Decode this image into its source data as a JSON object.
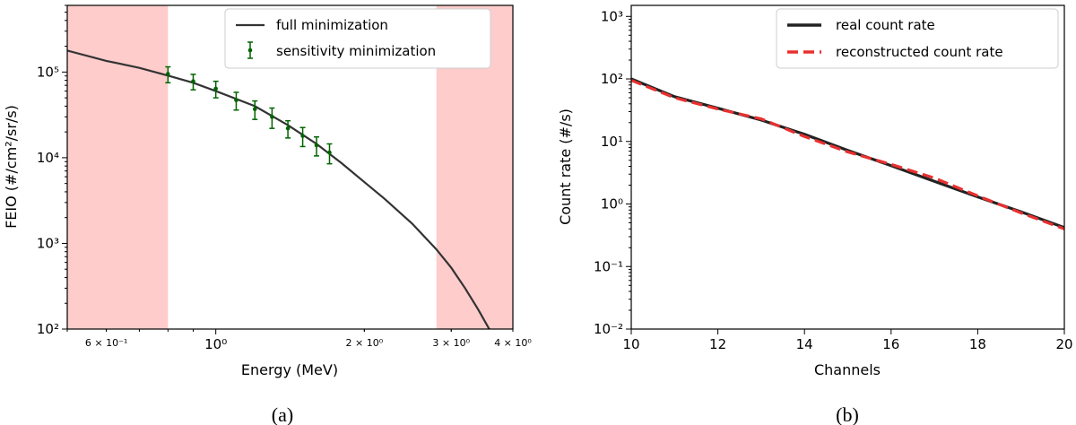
{
  "chart_data": [
    {
      "type": "line",
      "caption": "(a)",
      "xlabel": "Energy (MeV)",
      "ylabel": "FEIO (#/cm²/sr/s)",
      "xscale": "log",
      "yscale": "log",
      "xlim": [
        0.5,
        4.0
      ],
      "ylim": [
        100,
        600000
      ],
      "x_ticks": [
        {
          "value": 0.6,
          "label": "6 × 10⁻¹",
          "major": false
        },
        {
          "value": 1.0,
          "label": "10⁰",
          "major": true
        },
        {
          "value": 2.0,
          "label": "2 × 10⁰",
          "major": false
        },
        {
          "value": 3.0,
          "label": "3 × 10⁰",
          "major": false
        },
        {
          "value": 4.0,
          "label": "4 × 10⁰",
          "major": false
        }
      ],
      "y_ticks": [
        {
          "value": 100,
          "label": "10²"
        },
        {
          "value": 1000,
          "label": "10³"
        },
        {
          "value": 10000,
          "label": "10⁴"
        },
        {
          "value": 100000,
          "label": "10⁵"
        }
      ],
      "shaded_regions": [
        {
          "x0": 0.5,
          "x1": 0.8,
          "color": "#ffcccc"
        },
        {
          "x0": 2.8,
          "x1": 4.0,
          "color": "#ffcccc"
        }
      ],
      "legend_position": "top-right",
      "series": [
        {
          "name": "full minimization",
          "kind": "line",
          "color": "#333333",
          "points": [
            [
              0.5,
              178000
            ],
            [
              0.6,
              135000
            ],
            [
              0.7,
              112000
            ],
            [
              0.8,
              91000
            ],
            [
              0.9,
              75000
            ],
            [
              1.0,
              60000
            ],
            [
              1.2,
              40000
            ],
            [
              1.4,
              24000
            ],
            [
              1.6,
              14500
            ],
            [
              1.8,
              8600
            ],
            [
              2.0,
              5200
            ],
            [
              2.2,
              3300
            ],
            [
              2.5,
              1700
            ],
            [
              2.8,
              850
            ],
            [
              3.0,
              520
            ],
            [
              3.2,
              300
            ],
            [
              3.4,
              170
            ],
            [
              3.6,
              95
            ]
          ]
        },
        {
          "name": "sensitivity minimization",
          "kind": "errorbar",
          "color": "#006400",
          "points": [
            {
              "x": 0.8,
              "y": 95000,
              "err": 20000
            },
            {
              "x": 0.9,
              "y": 78000,
              "err": 16000
            },
            {
              "x": 1.0,
              "y": 64000,
              "err": 14000
            },
            {
              "x": 1.1,
              "y": 47000,
              "err": 11000
            },
            {
              "x": 1.2,
              "y": 37000,
              "err": 9000
            },
            {
              "x": 1.3,
              "y": 30000,
              "err": 8000
            },
            {
              "x": 1.4,
              "y": 22000,
              "err": 5000
            },
            {
              "x": 1.5,
              "y": 18000,
              "err": 4500
            },
            {
              "x": 1.6,
              "y": 14000,
              "err": 3500
            },
            {
              "x": 1.7,
              "y": 11500,
              "err": 3000
            }
          ]
        }
      ]
    },
    {
      "type": "line",
      "caption": "(b)",
      "xlabel": "Channels",
      "ylabel": "Count rate (#/s)",
      "xscale": "linear",
      "yscale": "log",
      "xlim": [
        10,
        20
      ],
      "ylim": [
        0.01,
        1500
      ],
      "x_ticks": [
        {
          "value": 10,
          "label": "10"
        },
        {
          "value": 12,
          "label": "12"
        },
        {
          "value": 14,
          "label": "14"
        },
        {
          "value": 16,
          "label": "16"
        },
        {
          "value": 18,
          "label": "18"
        },
        {
          "value": 20,
          "label": "20"
        }
      ],
      "y_ticks": [
        {
          "value": 0.01,
          "label": "10⁻²"
        },
        {
          "value": 0.1,
          "label": "10⁻¹"
        },
        {
          "value": 1,
          "label": "10⁰"
        },
        {
          "value": 10,
          "label": "10¹"
        },
        {
          "value": 100,
          "label": "10²"
        },
        {
          "value": 1000,
          "label": "10³"
        }
      ],
      "legend_position": "top-right",
      "series": [
        {
          "name": "real count rate",
          "kind": "line",
          "color": "#222222",
          "dash": "solid",
          "points": [
            [
              10,
              100
            ],
            [
              11,
              52
            ],
            [
              12,
              34
            ],
            [
              13,
              22
            ],
            [
              14,
              13
            ],
            [
              15,
              7.2
            ],
            [
              16,
              4.1
            ],
            [
              17,
              2.3
            ],
            [
              18,
              1.3
            ],
            [
              19,
              0.75
            ],
            [
              20,
              0.42
            ]
          ]
        },
        {
          "name": "reconstructed count rate",
          "kind": "line",
          "color": "#e83030",
          "dash": "dashed",
          "points": [
            [
              10,
              95
            ],
            [
              11,
              50
            ],
            [
              12,
              33
            ],
            [
              13,
              23
            ],
            [
              14,
              12
            ],
            [
              15,
              6.8
            ],
            [
              16,
              4.3
            ],
            [
              17,
              2.6
            ],
            [
              18,
              1.35
            ],
            [
              19,
              0.72
            ],
            [
              20,
              0.4
            ]
          ]
        }
      ]
    }
  ]
}
